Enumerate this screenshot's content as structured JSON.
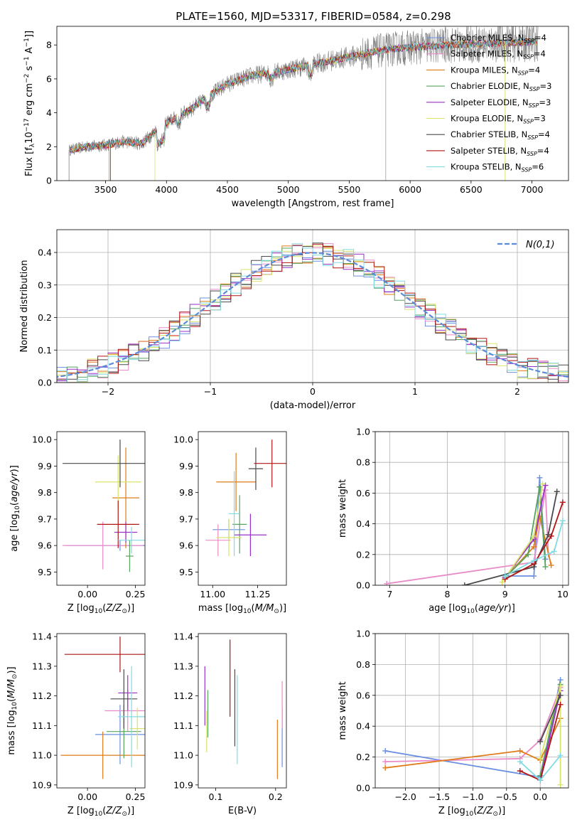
{
  "figure": {
    "title": "PLATE=1560, MJD=53317, FIBERID=0584, z=0.298"
  },
  "legend_entries": [
    {
      "model": "Chabrier MILES",
      "nssp": "4",
      "color": "#6a8fe0"
    },
    {
      "model": "Salpeter MILES",
      "nssp": "4",
      "color": "#e98bc8"
    },
    {
      "model": "Kroupa MILES",
      "nssp": "4",
      "color": "#e07b18"
    },
    {
      "model": "Chabrier ELODIE",
      "nssp": "3",
      "color": "#56a45e"
    },
    {
      "model": "Salpeter ELODIE",
      "nssp": "3",
      "color": "#9a32c9"
    },
    {
      "model": "Kroupa ELODIE",
      "nssp": "3",
      "color": "#d9e36a"
    },
    {
      "model": "Chabrier STELIB",
      "nssp": "4",
      "color": "#4a4a4a"
    },
    {
      "model": "Salpeter STELIB",
      "nssp": "4",
      "color": "#b01515"
    },
    {
      "model": "Kroupa STELIB",
      "nssp": "6",
      "color": "#80dbe3"
    }
  ],
  "chart_data": [
    {
      "id": "spectrum",
      "type": "line",
      "xlabel": "wavelength [Angstrom, rest frame]",
      "ylabel": "Flux [f_λ 10^-17 erg cm^-2 s^-1 A^-1]",
      "xlim": [
        3100,
        7300
      ],
      "ylim": [
        0,
        9.1
      ],
      "xticks": [
        3500,
        4000,
        4500,
        5000,
        5500,
        6000,
        6500,
        7000
      ],
      "yticks": [
        0,
        2,
        4,
        6,
        8
      ],
      "observed_color": "#808080",
      "continuum_anchor": {
        "x": [
          3200,
          3350,
          3500,
          3650,
          3800,
          3950,
          4050,
          4200,
          4350,
          4500,
          4700,
          4900,
          5100,
          5300,
          5500,
          5700,
          5900,
          6100,
          6300,
          6500,
          6700,
          6900,
          7050
        ],
        "y": [
          1.8,
          2.0,
          2.1,
          2.3,
          2.2,
          3.2,
          3.6,
          4.2,
          5.0,
          5.7,
          6.2,
          6.4,
          6.7,
          7.0,
          7.3,
          7.6,
          7.8,
          7.9,
          8.0,
          8.05,
          8.1,
          8.15,
          8.2
        ]
      },
      "legend_position": "right"
    },
    {
      "id": "residual_distribution",
      "type": "line",
      "xlabel": "(data-model)/error",
      "ylabel": "Normed distribution",
      "xlim": [
        -2.5,
        2.5
      ],
      "ylim": [
        0,
        0.47
      ],
      "xticks": [
        -2,
        -1,
        0,
        1,
        2
      ],
      "yticks": [
        0.0,
        0.1,
        0.2,
        0.3,
        0.4
      ],
      "reference": {
        "name": "N(0,1)",
        "mu": 0,
        "sigma": 1,
        "color": "#5b8bd9"
      },
      "bin_width": 0.1,
      "legend_position": "top-right"
    },
    {
      "id": "age_vs_Z",
      "type": "scatter",
      "xlabel": "Z [log10(Z/Z⊙)]",
      "ylabel": "age  [log10(age/yr)]",
      "xlim": [
        -0.16,
        0.3
      ],
      "ylim": [
        9.45,
        10.03
      ],
      "xticks": [
        0.0,
        0.25
      ],
      "yticks": [
        9.5,
        9.6,
        9.7,
        9.8,
        9.9,
        10.0
      ],
      "points": [
        {
          "x": 0.17,
          "y": 9.6,
          "xerr": 0.28,
          "yerr": 0.02
        },
        {
          "x": 0.08,
          "y": 9.6,
          "xerr": 0.21,
          "yerr": 0.09
        },
        {
          "x": 0.2,
          "y": 9.78,
          "xerr": 0.07,
          "yerr": 0.19
        },
        {
          "x": 0.22,
          "y": 9.56,
          "xerr": 0.02,
          "yerr": 0.06
        },
        {
          "x": 0.2,
          "y": 9.65,
          "xerr": 0.06,
          "yerr": 0.04
        },
        {
          "x": 0.16,
          "y": 9.84,
          "xerr": 0.12,
          "yerr": 0.1
        },
        {
          "x": 0.17,
          "y": 9.91,
          "xerr": 0.3,
          "yerr": 0.09
        },
        {
          "x": 0.16,
          "y": 9.68,
          "xerr": 0.11,
          "yerr": 0.09
        },
        {
          "x": 0.23,
          "y": 9.62,
          "xerr": 0.07,
          "yerr": 0.05
        }
      ]
    },
    {
      "id": "age_vs_mass",
      "type": "scatter",
      "xlabel": "mass [log10(M/M⊙)]",
      "ylabel": "",
      "xlim": [
        10.92,
        11.41
      ],
      "ylim": [
        9.45,
        10.03
      ],
      "xticks": [
        11.0,
        11.25
      ],
      "yticks": [
        9.5,
        9.6,
        9.7,
        9.8,
        9.9,
        10.0
      ],
      "points": [
        {
          "x": 11.09,
          "y": 9.66,
          "xerr": 0.09,
          "yerr": 0.04
        },
        {
          "x": 11.03,
          "y": 9.62,
          "xerr": 0.07,
          "yerr": 0.06
        },
        {
          "x": 11.13,
          "y": 9.84,
          "xerr": 0.11,
          "yerr": 0.11
        },
        {
          "x": 11.15,
          "y": 9.68,
          "xerr": 0.04,
          "yerr": 0.11
        },
        {
          "x": 11.21,
          "y": 9.64,
          "xerr": 0.09,
          "yerr": 0.08
        },
        {
          "x": 11.09,
          "y": 9.63,
          "xerr": 0.07,
          "yerr": 0.07
        },
        {
          "x": 11.24,
          "y": 9.89,
          "xerr": 0.04,
          "yerr": 0.08
        },
        {
          "x": 11.33,
          "y": 9.91,
          "xerr": 0.1,
          "yerr": 0.09
        },
        {
          "x": 11.12,
          "y": 9.72,
          "xerr": 0.03,
          "yerr": 0.16
        }
      ]
    },
    {
      "id": "weight_vs_age",
      "type": "line",
      "xlabel": "age  [log10(age/yr)]",
      "ylabel": "mass weight",
      "xlim": [
        6.75,
        10.1
      ],
      "ylim": [
        0,
        1.0
      ],
      "xticks": [
        7,
        8,
        9,
        10
      ],
      "yticks": [
        0.0,
        0.2,
        0.4,
        0.6,
        0.8,
        1.0
      ],
      "series": [
        {
          "x": [
            9.0,
            9.5,
            9.6,
            9.7
          ],
          "y": [
            0.06,
            0.06,
            0.7,
            0.17
          ]
        },
        {
          "x": [
            6.95,
            9.5,
            9.7,
            9.75
          ],
          "y": [
            0.01,
            0.15,
            0.62,
            0.2
          ]
        },
        {
          "x": [
            9.0,
            9.5,
            9.6,
            9.8
          ],
          "y": [
            0.05,
            0.25,
            0.45,
            0.13
          ]
        },
        {
          "x": [
            9.0,
            9.4,
            9.6,
            9.7
          ],
          "y": [
            0.05,
            0.2,
            0.64,
            0.12
          ]
        },
        {
          "x": [
            9.0,
            9.5,
            9.7
          ],
          "y": [
            0.05,
            0.3,
            0.65
          ]
        },
        {
          "x": [
            8.95,
            9.5,
            9.65
          ],
          "y": [
            0.02,
            0.32,
            0.66
          ]
        },
        {
          "x": [
            8.3,
            9.5,
            9.75,
            9.9
          ],
          "y": [
            0.0,
            0.12,
            0.33,
            0.61
          ]
        },
        {
          "x": [
            9.0,
            9.5,
            9.8,
            10.0
          ],
          "y": [
            0.04,
            0.14,
            0.32,
            0.54
          ]
        },
        {
          "x": [
            9.0,
            9.5,
            9.85,
            10.0
          ],
          "y": [
            0.06,
            0.16,
            0.22,
            0.42
          ]
        }
      ]
    },
    {
      "id": "mass_vs_Z",
      "type": "scatter",
      "xlabel": "Z [log10(Z/Z⊙)]",
      "ylabel": "mass [log10(M/M⊙)]",
      "xlim": [
        -0.16,
        0.3
      ],
      "ylim": [
        10.89,
        11.41
      ],
      "xticks": [
        0.0,
        0.25
      ],
      "yticks": [
        10.9,
        11.0,
        11.1,
        11.2,
        11.3,
        11.4
      ],
      "points": [
        {
          "x": 0.17,
          "y": 11.07,
          "xerr": 0.13,
          "yerr": 0.1
        },
        {
          "x": 0.21,
          "y": 11.15,
          "xerr": 0.12,
          "yerr": 0.07
        },
        {
          "x": 0.08,
          "y": 11.0,
          "xerr": 0.22,
          "yerr": 0.08
        },
        {
          "x": 0.19,
          "y": 11.08,
          "xerr": 0.09,
          "yerr": 0.09
        },
        {
          "x": 0.21,
          "y": 11.21,
          "xerr": 0.05,
          "yerr": 0.06
        },
        {
          "x": 0.26,
          "y": 11.09,
          "xerr": 0.04,
          "yerr": 0.07
        },
        {
          "x": 0.19,
          "y": 11.19,
          "xerr": 0.07,
          "yerr": 0.1
        },
        {
          "x": 0.17,
          "y": 11.34,
          "xerr": 0.29,
          "yerr": 0.06
        },
        {
          "x": 0.23,
          "y": 11.13,
          "xerr": 0.07,
          "yerr": 0.17
        }
      ]
    },
    {
      "id": "mass_vs_EBV",
      "type": "scatter",
      "xlabel": "E(B-V)",
      "ylabel": "",
      "xlim": [
        0.071,
        0.218
      ],
      "ylim": [
        10.89,
        11.41
      ],
      "xticks": [
        0.1,
        0.2
      ],
      "yticks": [
        10.9,
        11.0,
        11.1,
        11.2,
        11.3,
        11.4
      ],
      "points": [
        {
          "x": 0.211,
          "y": 11.06,
          "xerr": 0,
          "yerr": 0.1
        },
        {
          "x": 0.211,
          "y": 11.17,
          "xerr": 0,
          "yerr": 0.08
        },
        {
          "x": 0.203,
          "y": 11.02,
          "xerr": 0,
          "yerr": 0.1
        },
        {
          "x": 0.087,
          "y": 11.14,
          "xerr": 0,
          "yerr": 0.08
        },
        {
          "x": 0.082,
          "y": 11.2,
          "xerr": 0,
          "yerr": 0.1
        },
        {
          "x": 0.085,
          "y": 11.08,
          "xerr": 0,
          "yerr": 0.07
        },
        {
          "x": 0.132,
          "y": 11.16,
          "xerr": 0,
          "yerr": 0.13
        },
        {
          "x": 0.124,
          "y": 11.26,
          "xerr": 0,
          "yerr": 0.13
        },
        {
          "x": 0.136,
          "y": 11.12,
          "xerr": 0,
          "yerr": 0.15
        }
      ]
    },
    {
      "id": "weight_vs_Z",
      "type": "line",
      "xlabel": "Z [log10(Z/Z⊙)]",
      "ylabel": "mass weight",
      "xlim": [
        -2.45,
        0.42
      ],
      "ylim": [
        0,
        1.0
      ],
      "xticks": [
        -2.0,
        -1.5,
        -1.0,
        -0.5,
        0.0
      ],
      "yticks": [
        0.0,
        0.2,
        0.4,
        0.6,
        0.8,
        1.0
      ],
      "series": [
        {
          "x": [
            -2.3,
            0.0,
            0.3
          ],
          "y": [
            0.24,
            0.07,
            0.7
          ]
        },
        {
          "x": [
            -2.3,
            -0.3,
            0.0,
            0.3
          ],
          "y": [
            0.17,
            0.19,
            0.31,
            0.65
          ]
        },
        {
          "x": [
            -2.3,
            -0.3,
            0.0,
            0.3
          ],
          "y": [
            0.13,
            0.24,
            0.18,
            0.45
          ]
        },
        {
          "x": [
            0.0,
            0.3
          ],
          "y": [
            0.08,
            0.67
          ]
        },
        {
          "x": [
            0.0,
            0.3
          ],
          "y": [
            0.05,
            0.63
          ]
        },
        {
          "x": [
            0.0,
            0.3,
            0.3
          ],
          "y": [
            0.19,
            0.66,
            0.02
          ]
        },
        {
          "x": [
            0.0,
            0.3
          ],
          "y": [
            0.3,
            0.6
          ]
        },
        {
          "x": [
            -0.3,
            0.0,
            0.3
          ],
          "y": [
            0.11,
            0.05,
            0.54
          ]
        },
        {
          "x": [
            -0.3,
            0.0,
            0.3
          ],
          "y": [
            0.17,
            0.05,
            0.21
          ]
        }
      ]
    }
  ]
}
